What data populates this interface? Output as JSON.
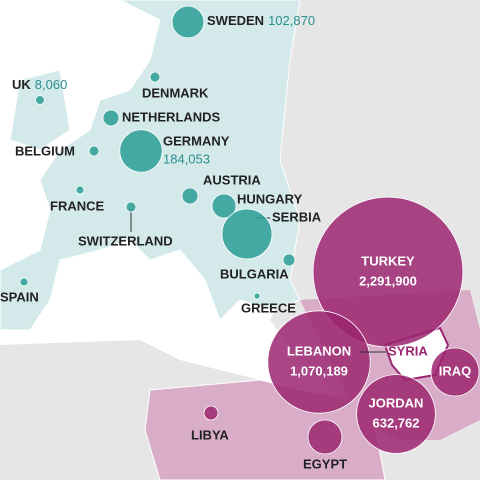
{
  "countries": [
    {
      "name": "SWEDEN",
      "value": 102870,
      "value_label": "102,870"
    },
    {
      "name": "UK",
      "value": 8060,
      "value_label": "8,060"
    },
    {
      "name": "DENMARK"
    },
    {
      "name": "NETHERLANDS"
    },
    {
      "name": "GERMANY",
      "value": 184053,
      "value_label": "184,053"
    },
    {
      "name": "BELGIUM"
    },
    {
      "name": "FRANCE"
    },
    {
      "name": "SWITZERLAND"
    },
    {
      "name": "AUSTRIA"
    },
    {
      "name": "HUNGARY"
    },
    {
      "name": "SERBIA"
    },
    {
      "name": "BULGARIA"
    },
    {
      "name": "GREECE"
    },
    {
      "name": "SPAIN"
    },
    {
      "name": "TURKEY",
      "value": 2291900,
      "value_label": "2,291,900"
    },
    {
      "name": "LEBANON",
      "value": 1070189,
      "value_label": "1,070,189"
    },
    {
      "name": "SYRIA"
    },
    {
      "name": "IRAQ"
    },
    {
      "name": "JORDAN",
      "value": 632762,
      "value_label": "632,762"
    },
    {
      "name": "LIBYA"
    },
    {
      "name": "EGYPT"
    }
  ]
}
